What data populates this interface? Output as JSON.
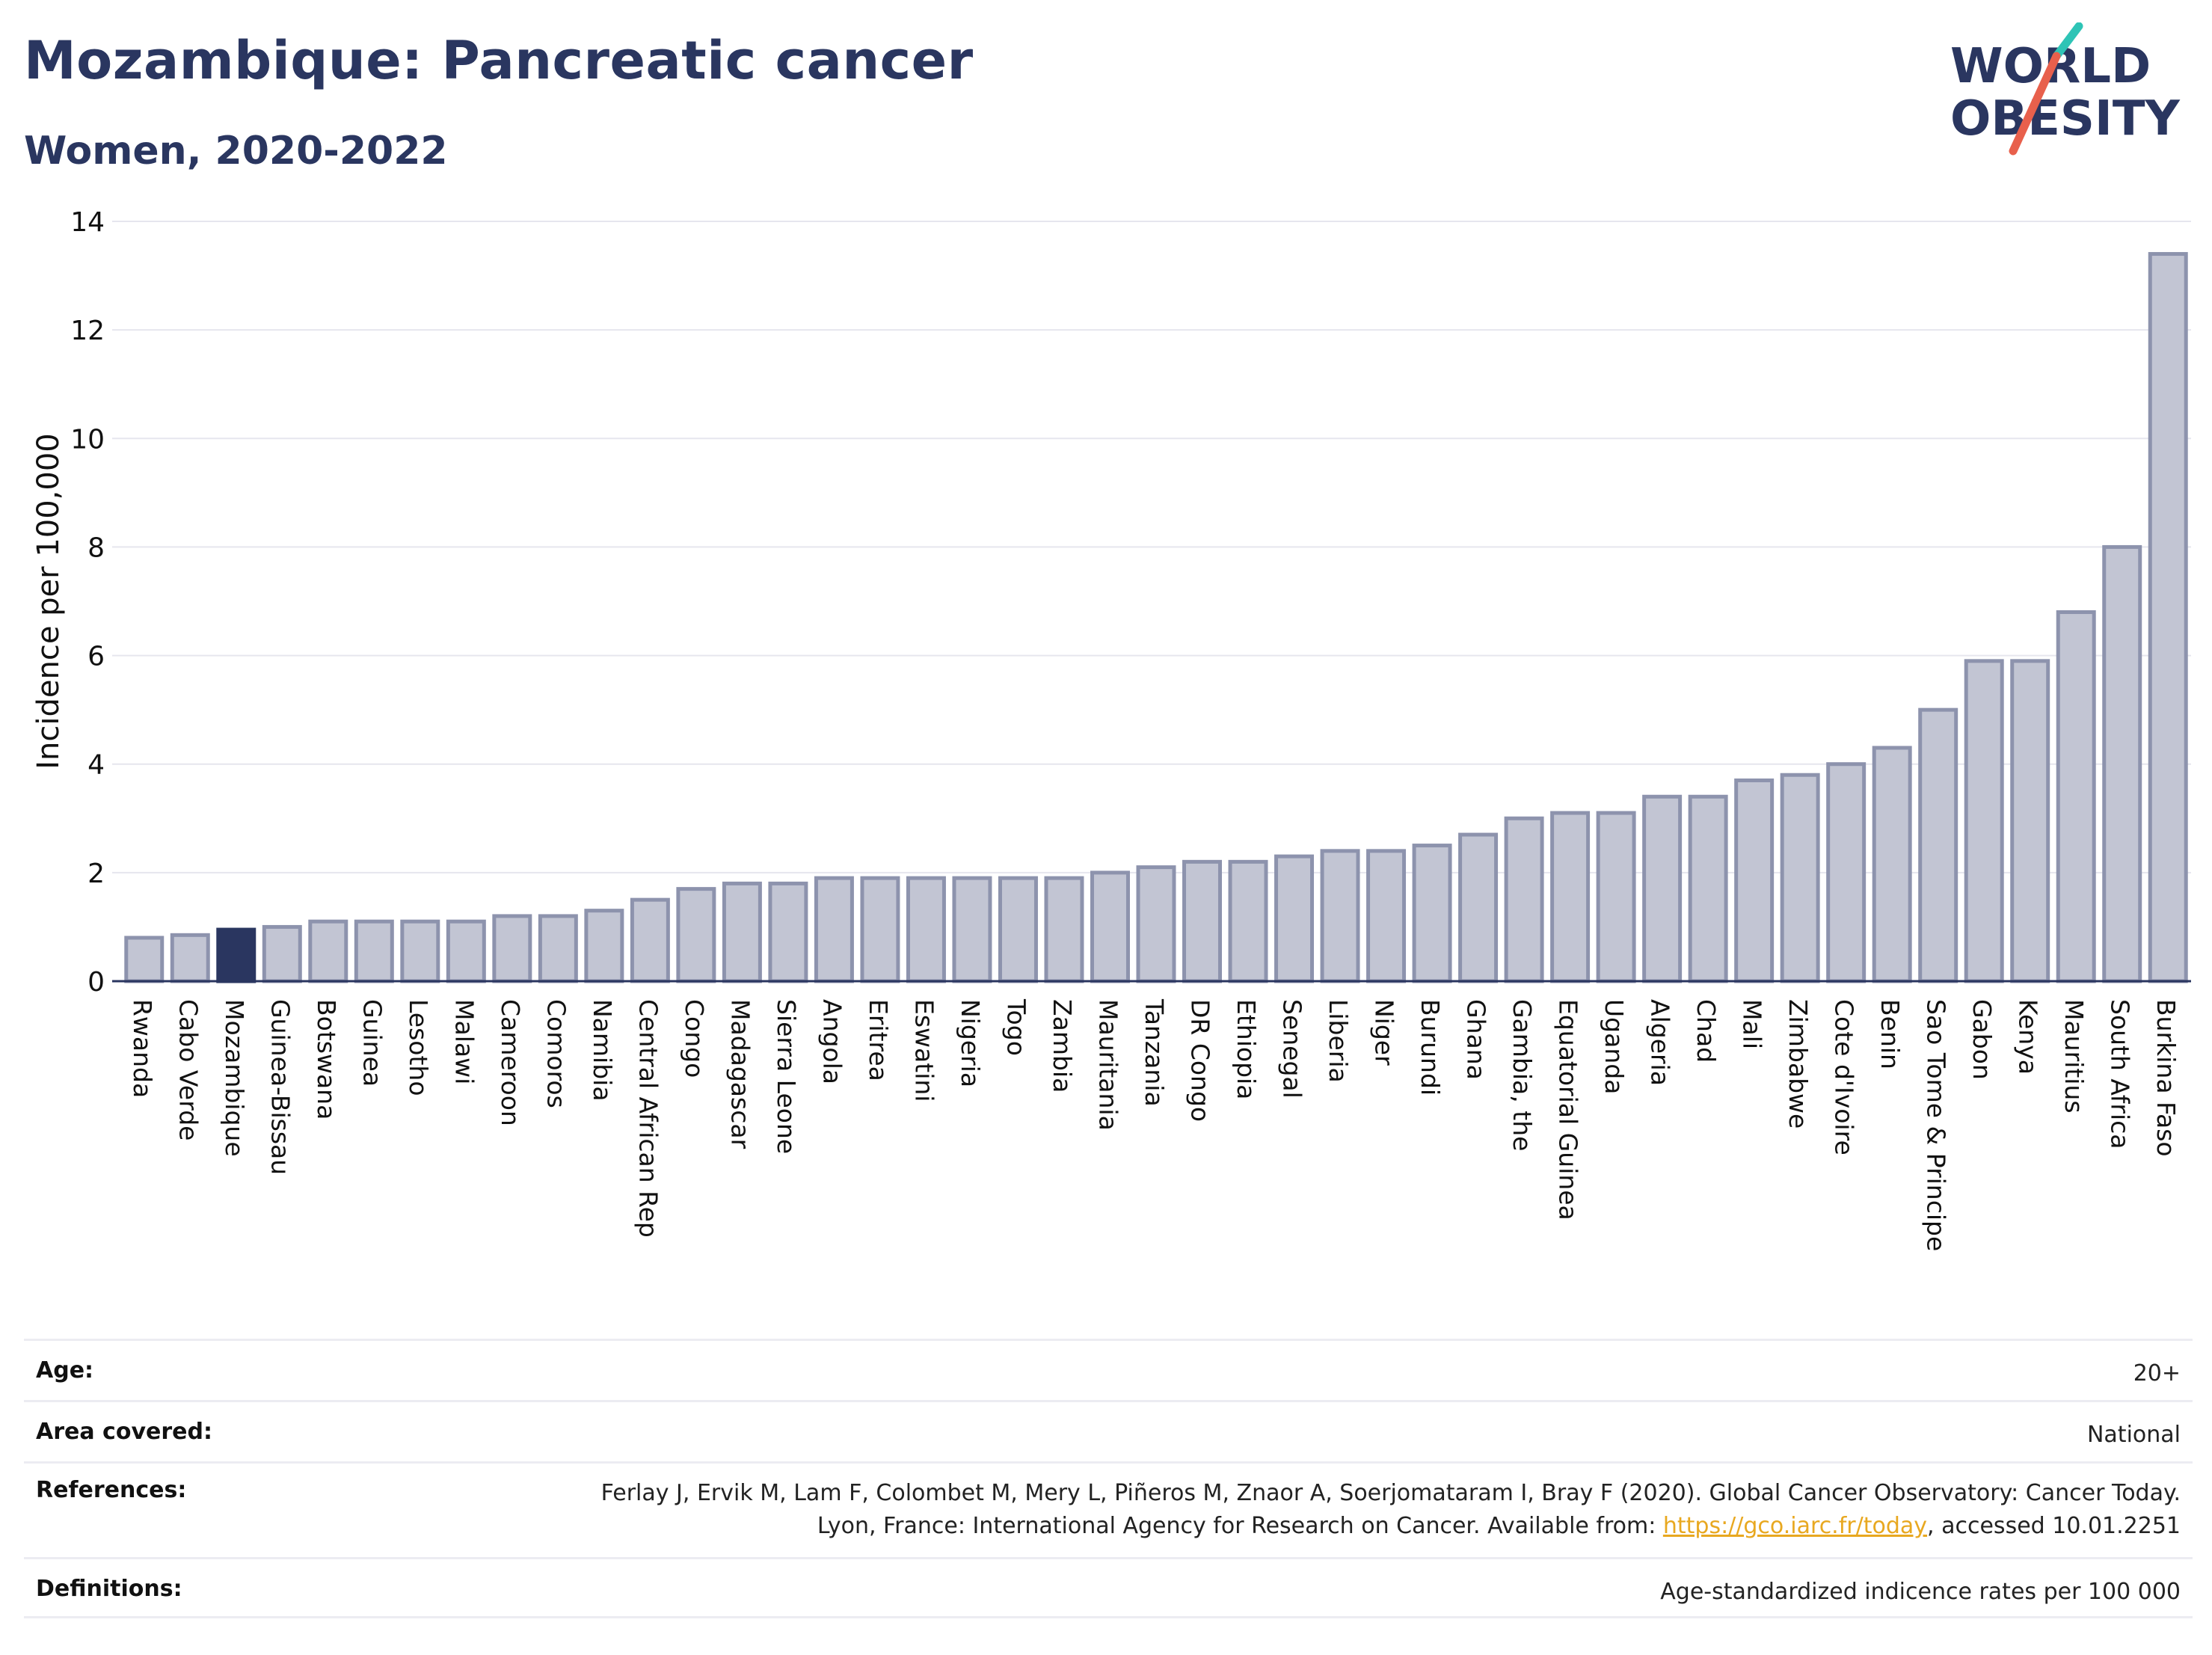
{
  "header": {
    "title": "Mozambique: Pancreatic cancer",
    "subtitle": "Women, 2020-2022"
  },
  "logo": {
    "line1": "WORLD",
    "line2": "OBESITY",
    "colors": {
      "text": "#2a3660",
      "slash_red": "#e8604c",
      "slash_teal": "#2ec4b6"
    }
  },
  "chart_data": {
    "type": "bar",
    "ylabel": "Incidence per 100,000",
    "ylim": [
      0,
      14
    ],
    "yticks": [
      0,
      2,
      4,
      6,
      8,
      10,
      12,
      14
    ],
    "grid": true,
    "highlight": "Mozambique",
    "colors": {
      "bar": "#c2c5d3",
      "bar_border": "#8d93ad",
      "highlight": "#2a3660"
    },
    "categories": [
      "Rwanda",
      "Cabo Verde",
      "Mozambique",
      "Guinea-Bissau",
      "Botswana",
      "Guinea",
      "Lesotho",
      "Malawi",
      "Cameroon",
      "Comoros",
      "Namibia",
      "Central African Rep",
      "Congo",
      "Madagascar",
      "Sierra Leone",
      "Angola",
      "Eritrea",
      "Eswatini",
      "Nigeria",
      "Togo",
      "Zambia",
      "Mauritania",
      "Tanzania",
      "DR Congo",
      "Ethiopia",
      "Senegal",
      "Liberia",
      "Niger",
      "Burundi",
      "Ghana",
      "Gambia, the",
      "Equatorial Guinea",
      "Uganda",
      "Algeria",
      "Chad",
      "Mali",
      "Zimbabwe",
      "Cote d'Ivoire",
      "Benin",
      "Sao Tome & Principe",
      "Gabon",
      "Kenya",
      "Mauritius",
      "South Africa",
      "Burkina Faso"
    ],
    "values": [
      0.8,
      0.85,
      0.95,
      1.0,
      1.1,
      1.1,
      1.1,
      1.1,
      1.2,
      1.2,
      1.3,
      1.5,
      1.7,
      1.8,
      1.8,
      1.9,
      1.9,
      1.9,
      1.9,
      1.9,
      1.9,
      2.0,
      2.1,
      2.2,
      2.2,
      2.3,
      2.4,
      2.4,
      2.5,
      2.7,
      3.0,
      3.1,
      3.1,
      3.4,
      3.4,
      3.7,
      3.8,
      4.0,
      4.3,
      5.0,
      5.9,
      5.9,
      6.8,
      8.0,
      13.4
    ]
  },
  "info": {
    "age_label": "Age:",
    "age_value": "20+",
    "area_label": "Area covered:",
    "area_value": "National",
    "refs_label": "References:",
    "refs_text_1": "Ferlay J, Ervik M, Lam F, Colombet M, Mery L, Piñeros M, Znaor A, Soerjomataram I, Bray F (2020). Global Cancer Observatory: Cancer Today. Lyon, France: International Agency for Research on Cancer. Available from: ",
    "refs_link": "https://gco.iarc.fr/today",
    "refs_text_2": ", accessed 10.01.2251",
    "defs_label": "Definitions:",
    "defs_value": "Age-standardized indicence rates per 100 000"
  }
}
